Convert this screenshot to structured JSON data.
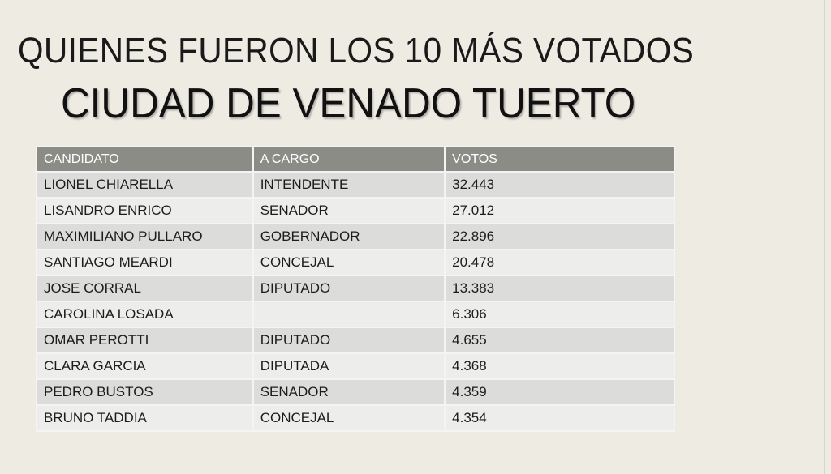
{
  "title_line1": "QUIENES FUERON LOS 10 MÁS VOTADOS",
  "title_line2": "CIUDAD DE VENADO TUERTO",
  "table": {
    "headers": [
      "CANDIDATO",
      "A CARGO",
      "VOTOS"
    ],
    "rows": [
      [
        "LIONEL CHIARELLA",
        "INTENDENTE",
        "32.443"
      ],
      [
        "LISANDRO ENRICO",
        "SENADOR",
        "27.012"
      ],
      [
        "MAXIMILIANO PULLARO",
        "GOBERNADOR",
        "22.896"
      ],
      [
        "SANTIAGO MEARDI",
        "CONCEJAL",
        "20.478"
      ],
      [
        "JOSE CORRAL",
        "DIPUTADO",
        "13.383"
      ],
      [
        "CAROLINA LOSADA",
        "",
        "6.306"
      ],
      [
        "OMAR PEROTTI",
        "DIPUTADO",
        "4.655"
      ],
      [
        "CLARA GARCIA",
        "DIPUTADA",
        "4.368"
      ],
      [
        "PEDRO BUSTOS",
        "SENADOR",
        "4.359"
      ],
      [
        "BRUNO TADDIA",
        "CONCEJAL",
        "4.354"
      ]
    ]
  },
  "colors": {
    "header_bg": "#8c8c86",
    "row_odd": "#dcdcdb",
    "row_even": "#ededec",
    "background": "#eeebe3"
  }
}
